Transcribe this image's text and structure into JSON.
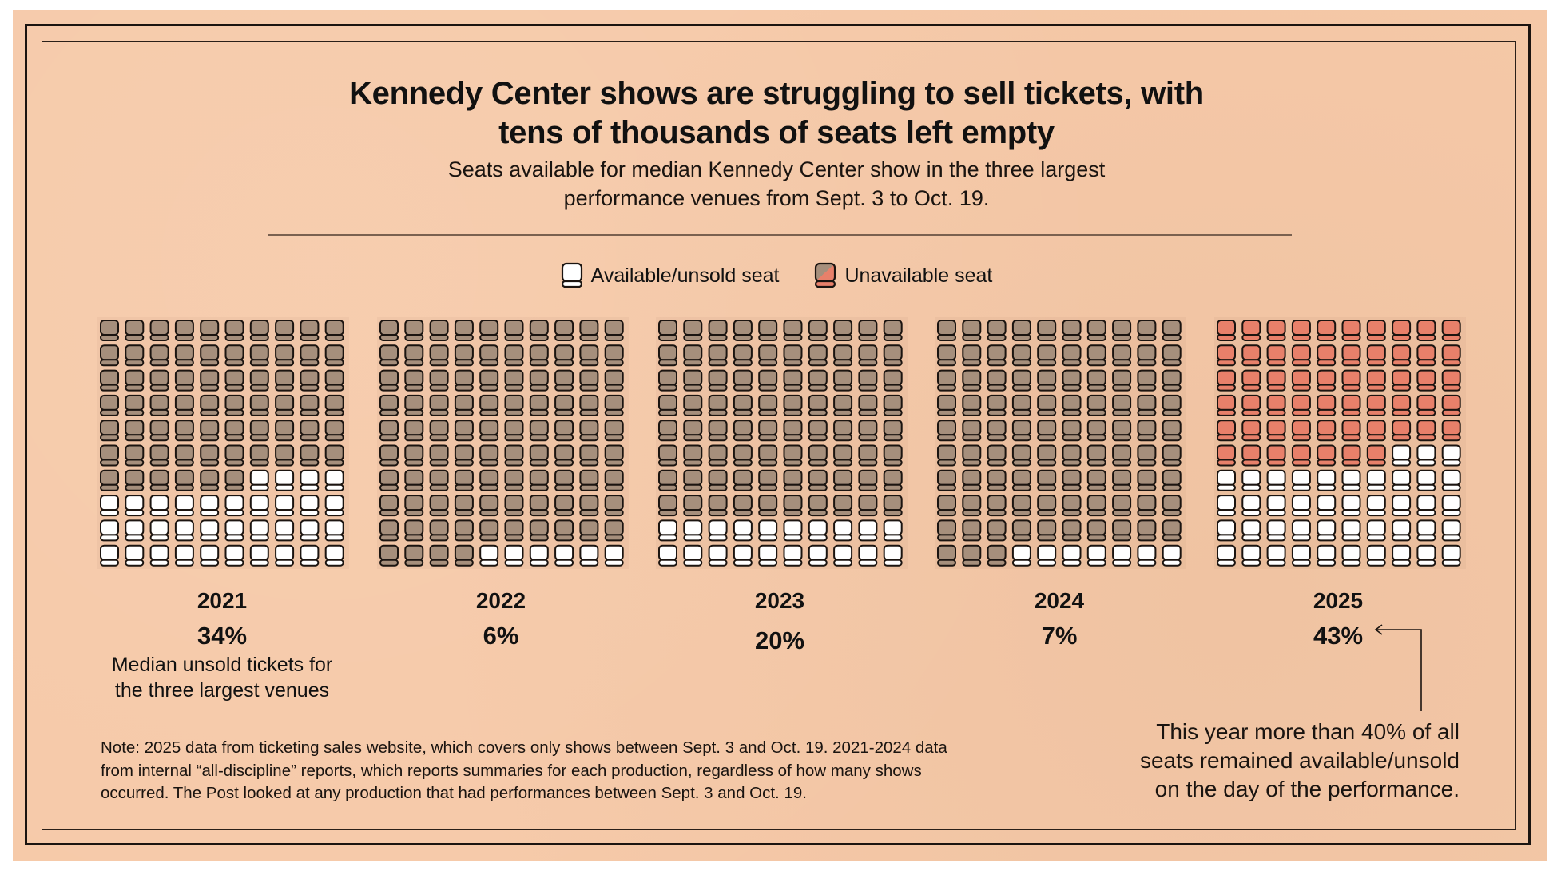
{
  "header": {
    "title_line1": "Kennedy Center shows are struggling to sell tickets, with",
    "title_line2": "tens of thousands of seats left empty",
    "subtitle_line1": "Seats available for median Kennedy Center show in the three largest",
    "subtitle_line2": "performance venues from Sept. 3 to Oct. 19."
  },
  "legend": {
    "available_label": "Available/unsold seat",
    "unavailable_label": "Unavailable seat"
  },
  "colors": {
    "paper": "#f6c9a8",
    "available_fill": "#ffffff",
    "unavailable_fill_past": "#a68f7c",
    "unavailable_fill_2025": "#e8806a",
    "outline": "#1b1410"
  },
  "caption": {
    "line1": "Median unsold tickets for",
    "line2": "the three largest venues"
  },
  "note": {
    "line1": "Note: 2025 data from ticketing sales website, which covers only shows between Sept. 3 and Oct. 19. 2021-2024 data",
    "line2": "from internal “all-discipline” reports, which reports summaries for each production, regardless of how many shows",
    "line3": "occurred. The Post looked at any production that had performances between Sept. 3 and Oct. 19."
  },
  "annotation": {
    "line1": "This year more than 40% of all",
    "line2": "seats remained available/unsold",
    "line3": "on the day of the performance."
  },
  "chart_data": {
    "type": "waffle",
    "title": "Kennedy Center shows are struggling to sell tickets, with tens of thousands of seats left empty",
    "subtitle": "Seats available for median Kennedy Center show in the three largest performance venues from Sept. 3 to Oct. 19.",
    "grid": {
      "rows": 10,
      "cols": 10,
      "total": 100
    },
    "fill_order": "row-major from top-left; unavailable seats first, available seats last",
    "legend": [
      "Available/unsold seat",
      "Unavailable seat"
    ],
    "legend_placement": "top-center",
    "categories": [
      "2021",
      "2022",
      "2023",
      "2024",
      "2025"
    ],
    "series": [
      {
        "name": "Available/unsold seat",
        "values": [
          34,
          6,
          20,
          7,
          43
        ]
      },
      {
        "name": "Unavailable seat",
        "values": [
          66,
          94,
          80,
          93,
          57
        ]
      }
    ],
    "labels": [
      "34%",
      "6%",
      "20%",
      "7%",
      "43%"
    ],
    "highlight_category": "2025",
    "value_caption": "Median unsold tickets for the three largest venues"
  }
}
